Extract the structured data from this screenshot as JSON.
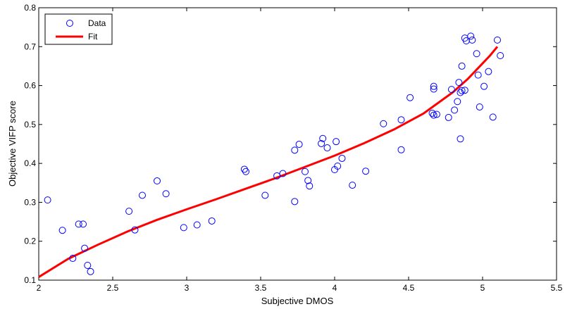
{
  "chart_data": {
    "type": "scatter",
    "title": "",
    "xlabel": "Subjective DMOS",
    "ylabel": "Objective VIFP score",
    "xlim": [
      2,
      5.5
    ],
    "ylim": [
      0.1,
      0.8
    ],
    "xticks": [
      2,
      2.5,
      3,
      3.5,
      4,
      4.5,
      5,
      5.5
    ],
    "yticks": [
      0.1,
      0.2,
      0.3,
      0.4,
      0.5,
      0.6,
      0.7,
      0.8
    ],
    "xtick_labels": [
      "2",
      "2.5",
      "3",
      "3.5",
      "4",
      "4.5",
      "5",
      "5.5"
    ],
    "ytick_labels": [
      "0.1",
      "0.2",
      "0.3",
      "0.4",
      "0.5",
      "0.6",
      "0.7",
      "0.8"
    ],
    "grid": false,
    "legend_position": "top-left",
    "series": [
      {
        "name": "Data",
        "style": "markers",
        "marker": "circle",
        "color": "#0000ff",
        "x": [
          2.06,
          2.16,
          2.23,
          2.27,
          2.3,
          2.31,
          2.33,
          2.35,
          2.61,
          2.65,
          2.7,
          2.8,
          2.86,
          2.98,
          3.07,
          3.17,
          3.39,
          3.4,
          3.53,
          3.61,
          3.65,
          3.73,
          3.73,
          3.76,
          3.8,
          3.82,
          3.83,
          3.91,
          3.92,
          3.95,
          4.0,
          4.01,
          4.02,
          4.05,
          4.12,
          4.21,
          4.33,
          4.45,
          4.45,
          4.51,
          4.66,
          4.67,
          4.67,
          4.67,
          4.69,
          4.77,
          4.79,
          4.81,
          4.83,
          4.84,
          4.85,
          4.85,
          4.86,
          4.86,
          4.88,
          4.88,
          4.89,
          4.92,
          4.93,
          4.96,
          4.97,
          4.98,
          5.01,
          5.04,
          5.07,
          5.1,
          5.12
        ],
        "y": [
          0.306,
          0.228,
          0.156,
          0.244,
          0.244,
          0.182,
          0.138,
          0.122,
          0.277,
          0.229,
          0.318,
          0.355,
          0.322,
          0.235,
          0.242,
          0.252,
          0.385,
          0.379,
          0.318,
          0.368,
          0.374,
          0.434,
          0.302,
          0.449,
          0.379,
          0.356,
          0.342,
          0.451,
          0.464,
          0.44,
          0.384,
          0.456,
          0.393,
          0.413,
          0.344,
          0.38,
          0.502,
          0.512,
          0.435,
          0.569,
          0.529,
          0.524,
          0.591,
          0.598,
          0.526,
          0.518,
          0.59,
          0.537,
          0.559,
          0.608,
          0.463,
          0.582,
          0.65,
          0.587,
          0.588,
          0.722,
          0.715,
          0.727,
          0.717,
          0.682,
          0.627,
          0.545,
          0.598,
          0.636,
          0.519,
          0.717,
          0.677
        ]
      },
      {
        "name": "Fit",
        "style": "line",
        "color": "#ff0000",
        "x": [
          2.0,
          2.2,
          2.4,
          2.6,
          2.8,
          3.0,
          3.2,
          3.4,
          3.6,
          3.8,
          4.0,
          4.2,
          4.4,
          4.6,
          4.8,
          4.9,
          5.0,
          5.05,
          5.1
        ],
        "y": [
          0.108,
          0.155,
          0.191,
          0.225,
          0.255,
          0.282,
          0.308,
          0.335,
          0.362,
          0.391,
          0.42,
          0.452,
          0.487,
          0.528,
          0.583,
          0.617,
          0.657,
          0.677,
          0.7
        ]
      }
    ]
  }
}
